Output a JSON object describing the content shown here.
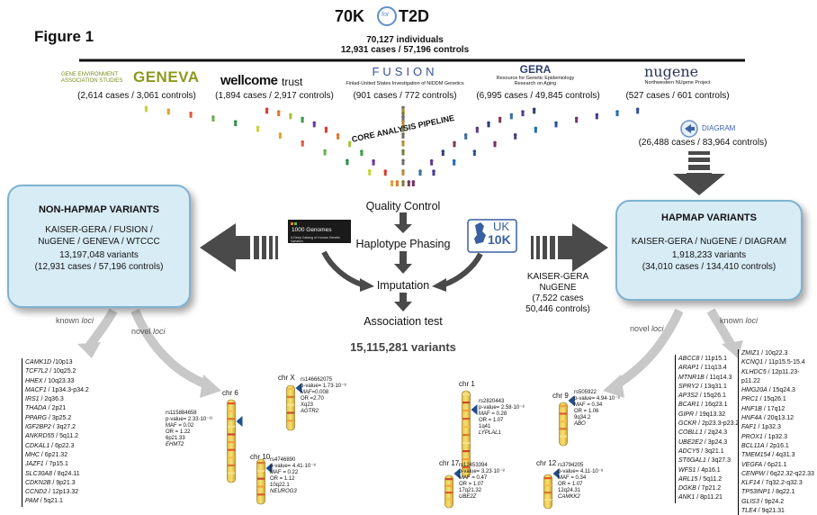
{
  "figure_label": "Figure 1",
  "consortium": {
    "name_left": "70K",
    "name_logo": "for",
    "name_right": "T2D",
    "individuals": "70,127 individuals",
    "cases_controls": "12,931 cases / 57,196 controls"
  },
  "studies": [
    {
      "name": "GENEVA",
      "name_prefix": "GENE ENVIRONMENT\nASSOCIATION STUDIES",
      "subtitle": "",
      "counts": "(2,614 cases / 3,061 controls)"
    },
    {
      "name": "wellcome",
      "name_suffix": "trust",
      "subtitle": "",
      "counts": "(1,894 cases / 2,917 controls)"
    },
    {
      "name": "FUSION",
      "subtitle": "Finlad-United States Investigation of NIDDM Genetics",
      "counts": "(901 cases / 772 controls)"
    },
    {
      "name": "GERA",
      "subtitle": "Resource for Genetic Epidemiology\nResearch on Aging",
      "counts": "(6,995 cases / 49,845 controls)"
    },
    {
      "name": "nugene",
      "subtitle": "Northwestern NUgene Project",
      "counts": "(527 cases / 601 controls)"
    }
  ],
  "diagram": {
    "name": "DIAGRAM",
    "counts": "(26,488 cases / 83,964 controls)"
  },
  "pipeline": {
    "title": "CORE ANALYSIS PIPELINE",
    "steps": [
      "Quality  Control",
      "Haplotype Phasing",
      "Imputation",
      "Association test"
    ],
    "total": "15,115,281 variants",
    "thousand_genomes": "1000 Genomes",
    "thousand_genomes_sub": "A Deep Catalog of Human Genetic Variation",
    "uk10k": "UK",
    "uk10k_num": "10K"
  },
  "non_hapmap": {
    "title": "NON-HAPMAP VARIANTS",
    "line1": "KAISER-GERA / FUSION /",
    "line2": "NuGENE / GENEVA / WTCCC",
    "variants": "13,197,048 variants",
    "counts": "(12,931 cases / 57,196 controls)"
  },
  "hapmap": {
    "title": "HAPMAP VARIANTS",
    "line1": "KAISER-GERA / NuGENE / DIAGRAM",
    "variants": "1,918,233 variants",
    "counts": "(34,010 cases / 134,410 controls)"
  },
  "kaiser_nugene": {
    "line1": "KAISER-GERA",
    "line2": "NuGENE",
    "line3": "(7,522 cases",
    "line4": "50,446 controls)"
  },
  "labels": {
    "known": "known",
    "novel": "novel",
    "loci": "loci"
  },
  "left_genes": [
    {
      "gene": "CAMK1D",
      "loc": " /10p13"
    },
    {
      "gene": "TCF7L2",
      "loc": " / 10q25.2"
    },
    {
      "gene": "HHEX",
      "loc": " / 10q23.33"
    },
    {
      "gene": "MACF1",
      "loc": " / 1p34.3-p34.2"
    },
    {
      "gene": "IRS1",
      "loc": " / 2q36.3"
    },
    {
      "gene": "THADA",
      "loc": " / 2p21"
    },
    {
      "gene": "PPARG",
      "loc": " / 3p25.2"
    },
    {
      "gene": "IGF2BP2",
      "loc": " / 3q27.2"
    },
    {
      "gene": "ANKRD55",
      "loc": " / 5q11.2"
    },
    {
      "gene": "CDKAL1",
      "loc": " / 6p22.3"
    },
    {
      "gene": "MHC",
      "loc": " / 6p21.32"
    },
    {
      "gene": "JAZF1",
      "loc": " / 7p15.1"
    },
    {
      "gene": "SLC30A8",
      "loc": " / 8q24.11"
    },
    {
      "gene": "CDKN2B",
      "loc": " / 9p21.3"
    },
    {
      "gene": "CCND2",
      "loc": " / 12p13.32"
    },
    {
      "gene": "PAM",
      "loc": " / 5q21.1"
    }
  ],
  "right_genes_a": [
    {
      "gene": "ABCC8",
      "loc": " / 11p15.1"
    },
    {
      "gene": "ARAP1",
      "loc": " / 11q13.4"
    },
    {
      "gene": "MTNR1B",
      "loc": " / 11q14.3"
    },
    {
      "gene": "SPRY2",
      "loc": " / 13q31.1"
    },
    {
      "gene": "AP3S2",
      "loc": " / 15q26.1"
    },
    {
      "gene": "BCAR1",
      "loc": " / 16q23.1"
    },
    {
      "gene": "GIPR",
      "loc": " / 19q13.32"
    },
    {
      "gene": "GCKR",
      "loc": " / 2p23.3-p23.2"
    },
    {
      "gene": "COBLL1",
      "loc": " / 2q24.3"
    },
    {
      "gene": "UBE2E2",
      "loc": " / 3p24.3"
    },
    {
      "gene": "ADCY5",
      "loc": " / 3q21.1"
    },
    {
      "gene": "ST6GAL1",
      "loc": " / 3q27.3"
    },
    {
      "gene": "WFS1",
      "loc": " / 4p16.1"
    },
    {
      "gene": "ARL15",
      "loc": " / 5q11.2"
    },
    {
      "gene": "DGKB",
      "loc": " / 7p21.2"
    },
    {
      "gene": "ANK1",
      "loc": " / 8p11.21"
    }
  ],
  "right_genes_b": [
    {
      "gene": "ZMIZ1",
      "loc": " / 10q22.3"
    },
    {
      "gene": "KCNQ1",
      "loc": " / 11p15.5-15.4"
    },
    {
      "gene": "KLHDC5",
      "loc": " / 12p11.23-p11.22"
    },
    {
      "gene": "HMG20A",
      "loc": " / 15q24.3"
    },
    {
      "gene": "PRC1",
      "loc": " / 15q26.1"
    },
    {
      "gene": "HNF1B",
      "loc": " / 17q12"
    },
    {
      "gene": "HNF4A",
      "loc": " / 20q13.12"
    },
    {
      "gene": "FAF1",
      "loc": " / 1p32.3"
    },
    {
      "gene": "PROX1",
      "loc": " / 1p32.3"
    },
    {
      "gene": "BCL11A",
      "loc": " / 2p16.1"
    },
    {
      "gene": "TMEM154",
      "loc": " / 4q31.3"
    },
    {
      "gene": "VEGFA",
      "loc": " / 6p21.1"
    },
    {
      "gene": "CENPW",
      "loc": " / 6q22.32-q22.33"
    },
    {
      "gene": "KLF14",
      "loc": " / 7q32.2-q32.3"
    },
    {
      "gene": "TP53INP1",
      "loc": " / 8q22.1"
    },
    {
      "gene": "GLIS3",
      "loc": " / 9p24.2"
    },
    {
      "gene": "TLE4",
      "loc": " / 9q21.31"
    }
  ],
  "loci": [
    {
      "chr": "chr 6",
      "rs": "rs115884658",
      "pv": "p-value= 2.33·10⁻¹¹",
      "maf": "MAF = 0.02",
      "or": "OR = 1.22",
      "band": "6p21.33",
      "gene": "EHMT2"
    },
    {
      "chr": "chr X",
      "rs": "rs146662075",
      "pv": "p-value= 1.73·10⁻⁸",
      "maf": "MAF=0.008",
      "or": "OR =2.70",
      "band": "Xq23",
      "gene": "AGTR2"
    },
    {
      "chr": "chr 10",
      "rs": "rs4746890",
      "pv": "p-value= 4.41·10⁻⁸",
      "maf": "MAF = 0.22",
      "or": "OR = 1.12",
      "band": "10q22.1",
      "gene": "NEUROG3"
    },
    {
      "chr": "chr 1",
      "rs": "rs2820443",
      "pv": "p-value= 2.58·10⁻⁸",
      "maf": "MAF = 0.28",
      "or": "OR = 1.07",
      "band": "1q41",
      "gene": "LYPLAL1"
    },
    {
      "chr": "chr 17",
      "rs": "rs12453394",
      "pv": "p-value= 3.23·10⁻⁸",
      "maf": "MAF = 0.47",
      "or": "OR = 1.07",
      "band": "17q21.32",
      "gene": "UBE2Z"
    },
    {
      "chr": "chr 9",
      "rs": "rs505922",
      "pv": "p-value= 4.94·10⁻⁸",
      "maf": "MAF = 0.34",
      "or": "OR = 1.06",
      "band": "9q34.2",
      "gene": "ABO"
    },
    {
      "chr": "chr 12",
      "rs": "rs3794205",
      "pv": "p-value= 4.11·10⁻⁸",
      "maf": "MAF = 0.34",
      "or": "OR = 1.07",
      "band": "12q24.31",
      "gene": "CAMKK2"
    }
  ],
  "colors": {
    "box_fill": "#d8ecf6",
    "box_border": "#7fb2d0",
    "arrow_dark": "#4a4a4a",
    "arrow_light": "#c8c8c8",
    "marker_blue": "#1f4e8c"
  }
}
